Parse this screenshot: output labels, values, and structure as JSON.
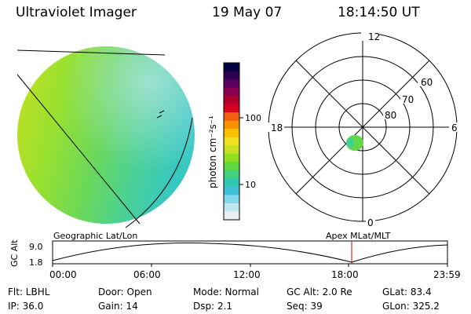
{
  "header": {
    "instrument": "Ultraviolet Imager",
    "date": "19 May 07",
    "time": "18:14:50 UT"
  },
  "colorbar": {
    "label": "photon cm⁻²s⁻¹",
    "ticks": [
      "100",
      "10"
    ],
    "colors": [
      "#000040",
      "#300050",
      "#5a0060",
      "#8a0050",
      "#b00030",
      "#d80020",
      "#f06010",
      "#f89000",
      "#f8c000",
      "#f0e020",
      "#c8e020",
      "#90e020",
      "#60d840",
      "#40d080",
      "#30c8b0",
      "#40c0d8",
      "#80d8e8",
      "#c0e8f0",
      "#e8f0f4"
    ]
  },
  "polar_plot": {
    "hour_labels": [
      "12",
      "18",
      "6",
      "0"
    ],
    "lat_labels": [
      "60",
      "70",
      "80"
    ]
  },
  "timeline": {
    "left_label": "Geographic Lat/Lon",
    "right_label": "Apex MLat/MLT",
    "axis_title": "GC Alt",
    "y_ticks": [
      "9.0",
      "1.8"
    ],
    "x_ticks": [
      "00:00",
      "06:00",
      "12:00",
      "18:00",
      "23:59"
    ]
  },
  "info": {
    "filter": "Flt: LBHL",
    "door": "Door: Open",
    "mode": "Mode: Normal",
    "gc_alt": "GC Alt: 2.0 Re",
    "glat": "GLat:   83.4",
    "ip": "IP: 36.0",
    "gain": "Gain: 14",
    "dsp": "Dsp:    2.1",
    "seq": "Seq: 39",
    "glon": "GLon: 325.2"
  }
}
